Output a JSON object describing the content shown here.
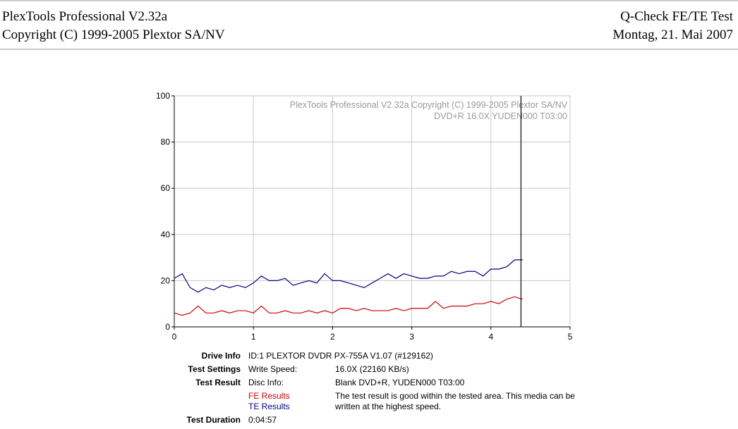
{
  "header": {
    "left": [
      "PlexTools Professional V2.32a",
      "Copyright (C) 1999-2005 Plextor SA/NV"
    ],
    "right": [
      "Q-Check FE/TE Test",
      "Montag, 21. Mai 2007"
    ]
  },
  "chart_data": {
    "type": "line",
    "annotations": [
      "PlexTools Professional V2.32a Copyright (C) 1999-2005 Plextor SA/NV",
      "DVD+R  16.0X  YUDEN000 T03:00"
    ],
    "x": [
      0,
      0.1,
      0.2,
      0.3,
      0.4,
      0.5,
      0.6,
      0.7,
      0.8,
      0.9,
      1.0,
      1.1,
      1.2,
      1.3,
      1.4,
      1.5,
      1.6,
      1.7,
      1.8,
      1.9,
      2.0,
      2.1,
      2.2,
      2.3,
      2.4,
      2.5,
      2.6,
      2.7,
      2.8,
      2.9,
      3.0,
      3.1,
      3.2,
      3.3,
      3.4,
      3.5,
      3.6,
      3.7,
      3.8,
      3.9,
      4.0,
      4.1,
      4.2,
      4.3,
      4.4
    ],
    "series": [
      {
        "name": "FE Results",
        "color": "#cc0000",
        "values": [
          6,
          5,
          6,
          9,
          6,
          6,
          7,
          6,
          7,
          7,
          6,
          9,
          6,
          6,
          7,
          6,
          6,
          7,
          6,
          7,
          6,
          8,
          8,
          7,
          8,
          7,
          7,
          7,
          8,
          7,
          8,
          8,
          8,
          11,
          8,
          9,
          9,
          9,
          10,
          10,
          11,
          10,
          12,
          13,
          12
        ]
      },
      {
        "name": "TE Results",
        "color": "#00007f",
        "values": [
          21,
          23,
          17,
          15,
          17,
          16,
          18,
          17,
          18,
          17,
          19,
          22,
          20,
          20,
          21,
          18,
          19,
          20,
          19,
          23,
          20,
          20,
          19,
          18,
          17,
          19,
          21,
          23,
          21,
          23,
          22,
          21,
          21,
          22,
          22,
          24,
          23,
          24,
          24,
          22,
          25,
          25,
          26,
          29,
          29
        ]
      }
    ],
    "test_end_x": 4.38,
    "xlim": [
      0,
      5
    ],
    "xticks": [
      0,
      1,
      2,
      3,
      4,
      5
    ],
    "ylim": [
      0,
      100
    ],
    "yticks": [
      0,
      20,
      40,
      60,
      80,
      100
    ],
    "grid": true
  },
  "info": {
    "rows": [
      [
        "Drive Info",
        "ID:1 PLEXTOR DVDR PX-755A V1.07 (#129162)"
      ],
      [
        "Test Settings",
        "Write Speed:",
        "16.0X (22160 KB/s)"
      ],
      [
        "Test Result",
        "Disc Info:",
        "Blank DVD+R, YUDEN000 T03:00"
      ],
      [
        "The test result is good within the tested area. This media can be",
        "written at the highest speed."
      ],
      [
        "Test Duration",
        "0:04:57"
      ]
    ]
  }
}
